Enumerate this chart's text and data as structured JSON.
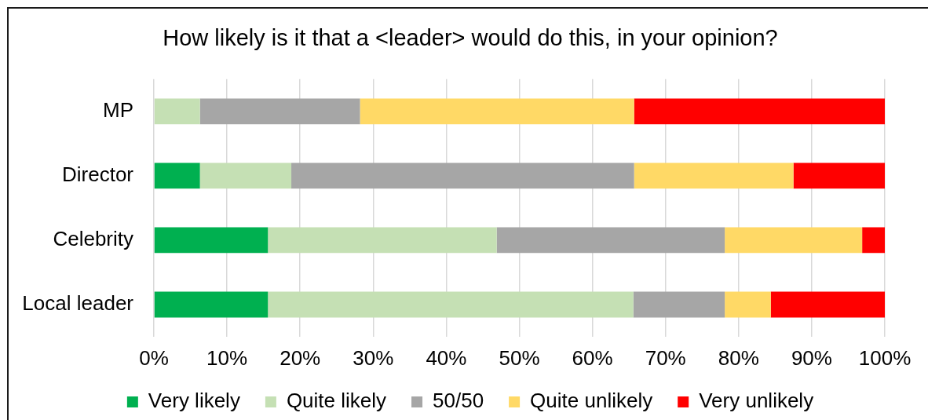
{
  "chart_data": {
    "type": "bar",
    "orientation": "horizontal",
    "stacked": true,
    "title": "How likely is it that a <leader> would do this, in your opinion?",
    "categories": [
      "MP",
      "Director",
      "Celebrity",
      "Local leader"
    ],
    "series": [
      {
        "name": "Very likely",
        "color": "#00b050",
        "values": [
          0,
          6.3,
          15.6,
          15.6
        ]
      },
      {
        "name": "Quite likely",
        "color": "#c5e0b4",
        "values": [
          6.3,
          12.5,
          31.3,
          50
        ]
      },
      {
        "name": "50/50",
        "color": "#a6a6a6",
        "values": [
          21.9,
          46.9,
          31.2,
          12.5
        ]
      },
      {
        "name": "Quite unlikely",
        "color": "#ffd966",
        "values": [
          37.5,
          21.8,
          18.8,
          6.3
        ]
      },
      {
        "name": "Very unlikely",
        "color": "#ff0000",
        "values": [
          34.3,
          12.5,
          3.1,
          15.6
        ]
      }
    ],
    "xlim": [
      0,
      100
    ],
    "xticks": [
      {
        "value": 0,
        "label": "0%"
      },
      {
        "value": 10,
        "label": "10%"
      },
      {
        "value": 20,
        "label": "20%"
      },
      {
        "value": 30,
        "label": "30%"
      },
      {
        "value": 40,
        "label": "40%"
      },
      {
        "value": 50,
        "label": "50%"
      },
      {
        "value": 60,
        "label": "60%"
      },
      {
        "value": 70,
        "label": "70%"
      },
      {
        "value": 80,
        "label": "80%"
      },
      {
        "value": 90,
        "label": "90%"
      },
      {
        "value": 100,
        "label": "100%"
      }
    ],
    "grid": "x",
    "legend": "bottom"
  }
}
